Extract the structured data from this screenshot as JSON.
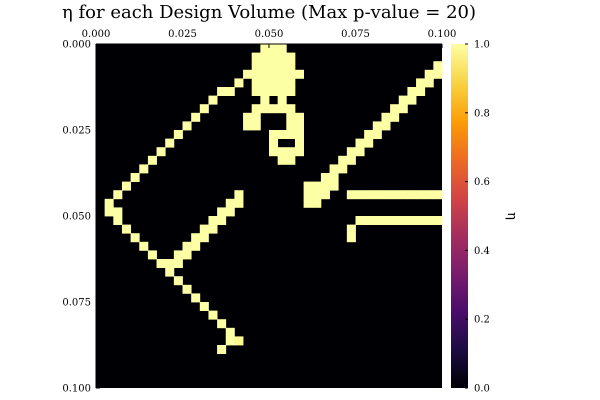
{
  "chart_data": {
    "type": "heatmap",
    "title": "η for each Design Volume (Max p-value = 20)",
    "x_range": [
      0,
      0.1
    ],
    "y_range": [
      0,
      0.1
    ],
    "y_inverted": true,
    "x_ticks": [
      "0.000",
      "0.025",
      "0.050",
      "0.075",
      "0.100"
    ],
    "x_tick_values": [
      0,
      0.025,
      0.05,
      0.075,
      0.1
    ],
    "x_axis_position": "top",
    "y_ticks": [
      "0.000",
      "0.025",
      "0.050",
      "0.075",
      "0.100"
    ],
    "y_tick_values": [
      0,
      0.025,
      0.05,
      0.075,
      0.1
    ],
    "grid": false,
    "colormap": "inferno",
    "colormap_stops": [
      "#000004",
      "#1b0c41",
      "#4a0c6b",
      "#781c6d",
      "#a52c60",
      "#cf4446",
      "#ed6925",
      "#fb9b06",
      "#f7d13d",
      "#fcffa4"
    ],
    "colorbar": {
      "label": "η",
      "range": [
        0,
        1
      ],
      "ticks": [
        "0.0",
        "0.2",
        "0.4",
        "0.6",
        "0.8",
        "1.0"
      ],
      "tick_values": [
        0,
        0.2,
        0.4,
        0.6,
        0.8,
        1.0
      ],
      "placement": "right"
    },
    "grid_shape": [
      40,
      40
    ],
    "background_value": 0.0,
    "cells": [
      [
        19,
        0,
        1
      ],
      [
        20,
        0,
        1
      ],
      [
        21,
        0,
        1
      ],
      [
        18,
        1,
        1
      ],
      [
        19,
        1,
        1
      ],
      [
        20,
        1,
        1
      ],
      [
        21,
        1,
        1
      ],
      [
        22,
        1,
        1
      ],
      [
        18,
        2,
        1
      ],
      [
        19,
        2,
        1
      ],
      [
        20,
        2,
        1
      ],
      [
        21,
        2,
        1
      ],
      [
        22,
        2,
        1
      ],
      [
        17,
        3,
        1
      ],
      [
        18,
        3,
        1
      ],
      [
        19,
        3,
        1
      ],
      [
        20,
        3,
        1
      ],
      [
        21,
        3,
        1
      ],
      [
        22,
        3,
        1
      ],
      [
        23,
        3,
        1
      ],
      [
        18,
        4,
        1
      ],
      [
        19,
        4,
        1
      ],
      [
        20,
        4,
        1
      ],
      [
        21,
        4,
        1
      ],
      [
        22,
        4,
        1
      ],
      [
        18,
        5,
        1
      ],
      [
        19,
        5,
        1
      ],
      [
        20,
        5,
        1
      ],
      [
        21,
        5,
        1
      ],
      [
        22,
        5,
        1
      ],
      [
        19,
        6,
        1
      ],
      [
        21,
        6,
        1
      ],
      [
        18,
        7,
        1
      ],
      [
        19,
        7,
        1
      ],
      [
        20,
        7,
        1
      ],
      [
        21,
        7,
        1
      ],
      [
        22,
        7,
        1
      ],
      [
        17,
        8,
        1
      ],
      [
        18,
        8,
        1
      ],
      [
        22,
        8,
        1
      ],
      [
        23,
        8,
        1
      ],
      [
        17,
        9,
        1
      ],
      [
        18,
        9,
        1
      ],
      [
        22,
        9,
        1
      ],
      [
        23,
        9,
        1
      ],
      [
        16,
        4,
        1
      ],
      [
        15,
        5,
        1
      ],
      [
        14,
        5,
        1
      ],
      [
        13,
        6,
        1
      ],
      [
        12,
        7,
        1
      ],
      [
        11,
        8,
        1
      ],
      [
        10,
        9,
        1
      ],
      [
        9,
        10,
        1
      ],
      [
        8,
        11,
        1
      ],
      [
        7,
        12,
        1
      ],
      [
        6,
        13,
        1
      ],
      [
        5,
        14,
        1
      ],
      [
        4,
        15,
        1
      ],
      [
        3,
        16,
        1
      ],
      [
        2,
        17,
        1
      ],
      [
        1,
        18,
        1
      ],
      [
        1,
        19,
        1
      ],
      [
        2,
        19,
        1
      ],
      [
        2,
        20,
        1
      ],
      [
        3,
        21,
        1
      ],
      [
        4,
        22,
        1
      ],
      [
        5,
        23,
        1
      ],
      [
        6,
        24,
        1
      ],
      [
        7,
        25,
        1
      ],
      [
        8,
        26,
        1
      ],
      [
        9,
        27,
        1
      ],
      [
        10,
        28,
        1
      ],
      [
        11,
        29,
        1
      ],
      [
        12,
        30,
        1
      ],
      [
        13,
        31,
        1
      ],
      [
        14,
        32,
        1
      ],
      [
        15,
        33,
        1
      ],
      [
        16,
        34,
        0.98
      ],
      [
        15,
        34,
        1
      ],
      [
        14,
        35,
        1
      ],
      [
        16,
        17,
        1
      ],
      [
        15,
        18,
        1
      ],
      [
        16,
        18,
        1
      ],
      [
        14,
        19,
        1
      ],
      [
        15,
        19,
        1
      ],
      [
        13,
        20,
        1
      ],
      [
        14,
        20,
        1
      ],
      [
        12,
        21,
        1
      ],
      [
        13,
        21,
        1
      ],
      [
        11,
        22,
        1
      ],
      [
        12,
        22,
        1
      ],
      [
        10,
        23,
        1
      ],
      [
        11,
        23,
        1
      ],
      [
        9,
        24,
        1
      ],
      [
        10,
        24,
        1
      ],
      [
        8,
        25,
        1
      ],
      [
        9,
        25,
        1
      ],
      [
        24,
        16,
        1
      ],
      [
        24,
        17,
        1
      ],
      [
        24,
        18,
        1
      ],
      [
        25,
        16,
        1
      ],
      [
        25,
        17,
        1
      ],
      [
        25,
        18,
        1
      ],
      [
        26,
        15,
        1
      ],
      [
        26,
        16,
        1
      ],
      [
        26,
        17,
        1
      ],
      [
        27,
        14,
        1
      ],
      [
        27,
        15,
        1
      ],
      [
        27,
        16,
        1
      ],
      [
        28,
        13,
        1
      ],
      [
        28,
        14,
        1
      ],
      [
        29,
        12,
        1
      ],
      [
        29,
        13,
        1
      ],
      [
        30,
        11,
        1
      ],
      [
        30,
        12,
        1
      ],
      [
        31,
        10,
        1
      ],
      [
        31,
        11,
        1
      ],
      [
        32,
        9,
        1
      ],
      [
        32,
        10,
        1
      ],
      [
        33,
        8,
        1
      ],
      [
        33,
        9,
        1
      ],
      [
        34,
        7,
        1
      ],
      [
        34,
        8,
        1
      ],
      [
        35,
        6,
        1
      ],
      [
        35,
        7,
        1
      ],
      [
        36,
        5,
        1
      ],
      [
        36,
        6,
        1
      ],
      [
        37,
        4,
        1
      ],
      [
        37,
        5,
        1
      ],
      [
        38,
        3,
        1
      ],
      [
        38,
        4,
        1
      ],
      [
        39,
        2,
        1
      ],
      [
        39,
        3,
        1
      ],
      [
        29,
        17,
        1
      ],
      [
        30,
        17,
        1
      ],
      [
        31,
        17,
        1
      ],
      [
        32,
        17,
        1
      ],
      [
        33,
        17,
        1
      ],
      [
        34,
        17,
        1
      ],
      [
        35,
        17,
        1
      ],
      [
        36,
        17,
        1
      ],
      [
        37,
        17,
        1
      ],
      [
        38,
        17,
        1
      ],
      [
        39,
        17,
        1
      ],
      [
        20,
        10,
        1
      ],
      [
        21,
        10,
        1
      ],
      [
        22,
        10,
        1
      ],
      [
        23,
        10,
        1
      ],
      [
        20,
        11,
        1
      ],
      [
        23,
        11,
        1
      ],
      [
        20,
        12,
        1
      ],
      [
        21,
        12,
        1
      ],
      [
        22,
        12,
        1
      ],
      [
        23,
        12,
        1
      ],
      [
        21,
        13,
        1
      ],
      [
        22,
        13,
        1
      ],
      [
        30,
        20,
        1
      ],
      [
        31,
        20,
        1
      ],
      [
        32,
        20,
        1
      ],
      [
        33,
        20,
        1
      ],
      [
        34,
        20,
        1
      ],
      [
        35,
        20,
        1
      ],
      [
        36,
        20,
        1
      ],
      [
        37,
        20,
        1
      ],
      [
        38,
        20,
        1
      ],
      [
        39,
        20,
        1
      ],
      [
        29,
        21,
        1
      ],
      [
        29,
        22,
        1
      ]
    ]
  }
}
